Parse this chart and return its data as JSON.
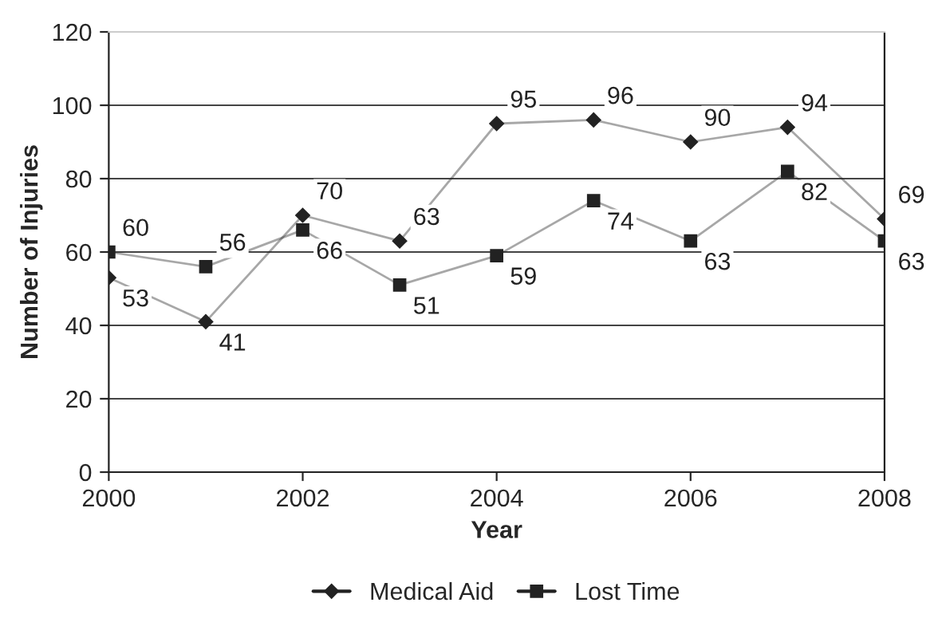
{
  "chart_data": {
    "type": "line",
    "x": [
      2000,
      2001,
      2002,
      2003,
      2004,
      2005,
      2006,
      2007,
      2008
    ],
    "series": [
      {
        "name": "Medical Aid",
        "color": "#222222",
        "marker": "diamond",
        "values": [
          53,
          41,
          70,
          63,
          95,
          96,
          90,
          94,
          69
        ]
      },
      {
        "name": "Lost Time",
        "color": "#222222",
        "marker": "square",
        "values": [
          60,
          56,
          66,
          51,
          59,
          74,
          63,
          82,
          63
        ]
      }
    ],
    "xlabel": "Year",
    "ylabel": "Number of Injuries",
    "xlim": [
      2000,
      2008
    ],
    "xticks": [
      2000,
      2002,
      2004,
      2006,
      2008
    ],
    "ylim": [
      0,
      120
    ],
    "yticks": [
      0,
      20,
      40,
      60,
      80,
      100,
      120
    ],
    "grid": "y",
    "legend": "bottom",
    "data_labels": true,
    "line_style": "solid"
  }
}
